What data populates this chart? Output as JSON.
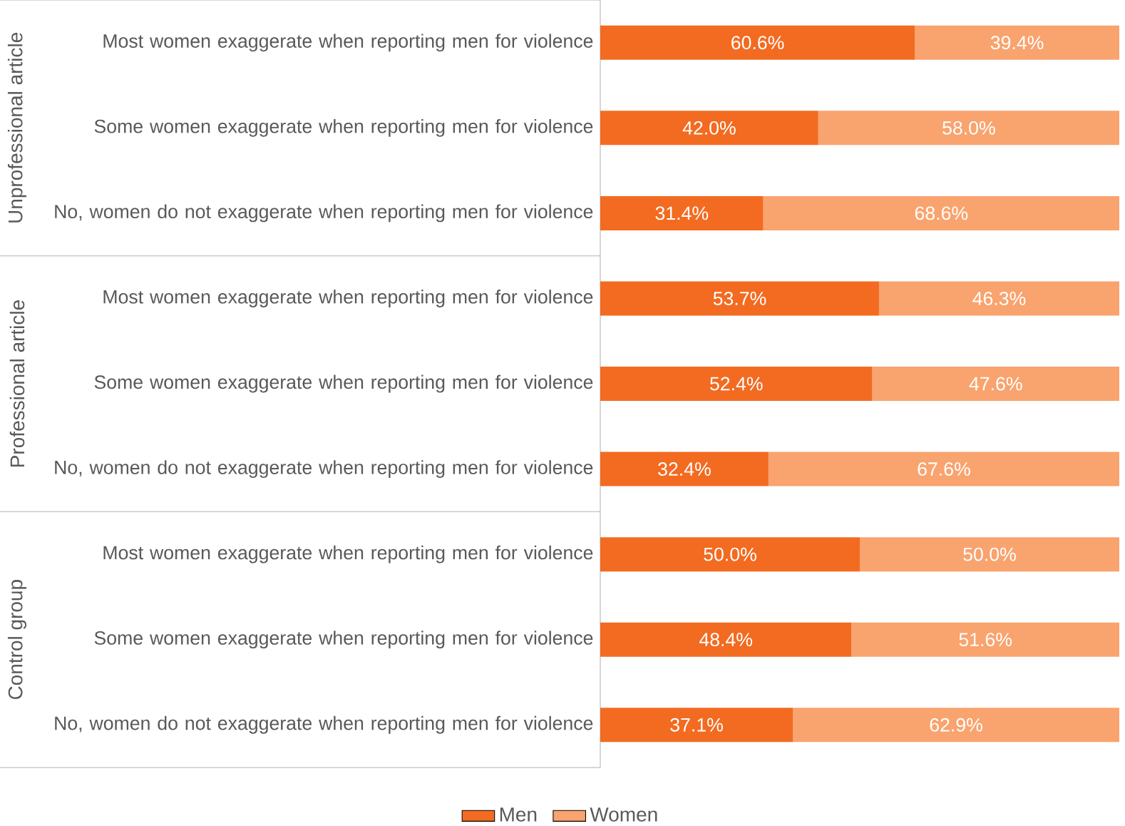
{
  "chart_data": {
    "type": "bar",
    "orientation": "horizontal",
    "stacked": true,
    "legend": "bottom",
    "tick_labels": "y",
    "xlim": [
      0,
      100
    ],
    "categories": [
      "Most women exaggerate when reporting men for violence",
      "Some women exaggerate when reporting men for violence",
      "No, women do not exaggerate when reporting men for violence",
      "Most women exaggerate when reporting men for violence",
      "Some women exaggerate when reporting men for violence",
      "No, women do not exaggerate when reporting men for violence",
      "Most women exaggerate when reporting men for violence",
      "Some women exaggerate when reporting men for violence",
      "No, women do not exaggerate when reporting men for violence"
    ],
    "series": [
      {
        "name": "Men",
        "color": "#f26b21",
        "values": [
          60.6,
          42.0,
          31.4,
          53.7,
          52.4,
          32.4,
          50.0,
          48.4,
          37.1
        ],
        "value_labels": [
          "60.6%",
          "42.0%",
          "31.4%",
          "53.7%",
          "52.4%",
          "32.4%",
          "50.0%",
          "48.4%",
          "37.1%"
        ]
      },
      {
        "name": "Women",
        "color": "#f9a36e",
        "values": [
          39.4,
          58.0,
          68.6,
          46.3,
          47.6,
          67.6,
          50.0,
          51.6,
          62.9
        ],
        "value_labels": [
          "39.4%",
          "58.0%",
          "68.6%",
          "46.3%",
          "47.6%",
          "67.6%",
          "50.0%",
          "51.6%",
          "62.9%"
        ]
      }
    ],
    "annotations": [
      "Unprofessional article",
      "Professional article",
      "Control group"
    ]
  }
}
